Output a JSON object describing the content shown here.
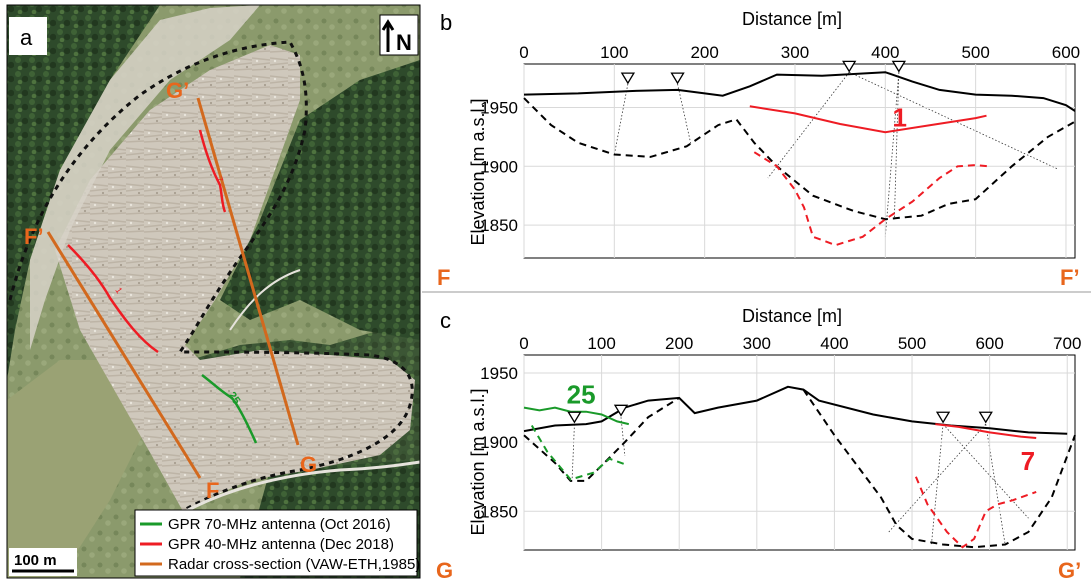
{
  "panel_a": {
    "letter": "a",
    "north_label": "N",
    "scale_label": "100 m",
    "point_labels": {
      "g_prime": "G’",
      "f_prime": "F’",
      "g": "G",
      "f": "F"
    },
    "profile_labels": {
      "green": "25",
      "red_upper": "7",
      "red_lower": "1"
    },
    "legend": [
      {
        "label": "GPR 70-MHz antenna (Oct 2016)",
        "color": "#1a9a2a"
      },
      {
        "label": "GPR 40-MHz antenna (Dec 2018)",
        "color": "#ee1c24"
      },
      {
        "label": "Radar cross-section (VAW-ETH,1985)",
        "color": "#d2691e"
      }
    ]
  },
  "panel_b": {
    "letter": "b",
    "xlabel": "Distance [m]",
    "ylabel": "Elevation [m a.s.l.]",
    "xticks": [
      "0",
      "100",
      "200",
      "300",
      "400",
      "500",
      "600"
    ],
    "yticks": [
      "1950",
      "1900",
      "1850"
    ],
    "left_end": "F",
    "right_end": "F’",
    "profile_label": "1"
  },
  "panel_c": {
    "letter": "c",
    "xlabel": "Distance [m]",
    "ylabel": "Elevation [m a.s.l.]",
    "xticks": [
      "0",
      "100",
      "200",
      "300",
      "400",
      "500",
      "600",
      "700"
    ],
    "yticks": [
      "1950",
      "1900",
      "1850"
    ],
    "left_end": "G",
    "right_end": "G’",
    "profile_label_green": "25",
    "profile_label_red": "7"
  },
  "chart_data": [
    {
      "type": "line",
      "panel": "b",
      "xlabel": "Distance [m]",
      "ylabel": "Elevation [m a.s.l.]",
      "xlim": [
        0,
        610
      ],
      "ylim": [
        1822,
        1987
      ],
      "series": [
        {
          "style": "solid",
          "color": "#000000",
          "x": [
            0,
            60,
            120,
            170,
            200,
            220,
            250,
            280,
            330,
            400,
            430,
            460,
            500,
            540,
            575,
            600,
            610
          ],
          "y": [
            1961,
            1962,
            1964,
            1965,
            1962,
            1960,
            1968,
            1978,
            1977,
            1980,
            1972,
            1965,
            1961,
            1960,
            1958,
            1952,
            1947
          ]
        },
        {
          "style": "dashed",
          "color": "#000000",
          "x": [
            0,
            30,
            60,
            100,
            140,
            180,
            215,
            235,
            255,
            280,
            320,
            365,
            400,
            440,
            470,
            500,
            540,
            580,
            610
          ],
          "y": [
            1958,
            1935,
            1920,
            1910,
            1908,
            1917,
            1935,
            1940,
            1920,
            1900,
            1875,
            1862,
            1855,
            1858,
            1868,
            1872,
            1900,
            1925,
            1938
          ]
        },
        {
          "style": "solid",
          "color": "#ee1c24",
          "x": [
            250,
            300,
            350,
            400,
            450,
            500,
            512
          ],
          "y": [
            1951,
            1945,
            1936,
            1929,
            1935,
            1941,
            1943
          ]
        },
        {
          "style": "dashed",
          "color": "#ee1c24",
          "x": [
            255,
            280,
            300,
            310,
            320,
            345,
            375,
            400,
            430,
            460,
            480,
            500,
            515
          ],
          "y": [
            1912,
            1900,
            1880,
            1865,
            1840,
            1833,
            1840,
            1855,
            1870,
            1890,
            1900,
            1901,
            1900
          ]
        }
      ],
      "markers": {
        "type": "triangle-down",
        "x": [
          115,
          170,
          360,
          415
        ],
        "y": [
          1975,
          1975,
          1985,
          1985
        ]
      }
    },
    {
      "type": "line",
      "panel": "c",
      "xlabel": "Distance [m]",
      "ylabel": "Elevation [m a.s.l.]",
      "xlim": [
        0,
        710
      ],
      "ylim": [
        1822,
        1963
      ],
      "series": [
        {
          "style": "solid",
          "color": "#000000",
          "x": [
            0,
            40,
            80,
            100,
            130,
            160,
            200,
            220,
            250,
            300,
            340,
            360,
            380,
            450,
            500,
            550,
            600,
            650,
            700
          ],
          "y": [
            1908,
            1912,
            1913,
            1915,
            1925,
            1930,
            1932,
            1921,
            1925,
            1930,
            1940,
            1938,
            1930,
            1920,
            1915,
            1912,
            1910,
            1907,
            1906
          ]
        },
        {
          "style": "dashed",
          "color": "#000000",
          "x": [
            0,
            40,
            60,
            80,
            100,
            130,
            160,
            200
          ],
          "y": [
            1905,
            1885,
            1872,
            1872,
            1883,
            1900,
            1918,
            1932
          ]
        },
        {
          "style": "dashed",
          "color": "#000000",
          "x": [
            360,
            400,
            440,
            460,
            480,
            500,
            540,
            580,
            620,
            650,
            680,
            700,
            710
          ],
          "y": [
            1938,
            1905,
            1875,
            1860,
            1840,
            1830,
            1826,
            1824,
            1826,
            1835,
            1860,
            1890,
            1905
          ]
        },
        {
          "style": "solid",
          "color": "#1a9a2a",
          "x": [
            0,
            20,
            40,
            60,
            80,
            100,
            120,
            135
          ],
          "y": [
            1925,
            1923,
            1925,
            1922,
            1922,
            1920,
            1915,
            1913
          ]
        },
        {
          "style": "dashed",
          "color": "#1a9a2a",
          "x": [
            10,
            30,
            60,
            90,
            110,
            130
          ],
          "y": [
            1912,
            1893,
            1873,
            1878,
            1888,
            1884
          ]
        },
        {
          "style": "solid",
          "color": "#ee1c24",
          "x": [
            530,
            560,
            600,
            640,
            660
          ],
          "y": [
            1913,
            1911,
            1907,
            1904,
            1903
          ]
        },
        {
          "style": "dashed",
          "color": "#ee1c24",
          "x": [
            505,
            520,
            545,
            565,
            580,
            595,
            610,
            630,
            650,
            660
          ],
          "y": [
            1875,
            1855,
            1835,
            1824,
            1830,
            1850,
            1855,
            1858,
            1862,
            1864
          ]
        }
      ],
      "markers": {
        "type": "triangle-down",
        "x": [
          65,
          125,
          540,
          595
        ],
        "y": [
          1918,
          1923,
          1918,
          1918
        ]
      }
    }
  ]
}
